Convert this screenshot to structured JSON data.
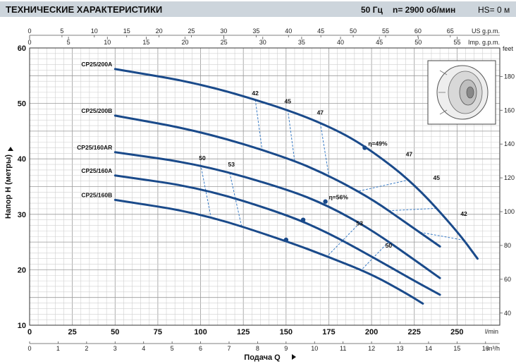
{
  "header": {
    "title": "ТЕХНИЧЕСКИЕ ХАРАКТЕРИСТИКИ",
    "frequency": "50 Гц",
    "speed": "n= 2900  об/мин",
    "hs": "HS= 0 м"
  },
  "chart_data": {
    "type": "line",
    "xlabel": "Подача Q",
    "ylabel": "Напор H (метры)",
    "xlim": [
      0,
      275
    ],
    "ylim": [
      10,
      60
    ],
    "grid": true,
    "x_unit": "l/min",
    "y_ticks": [
      10,
      20,
      30,
      40,
      50,
      60
    ],
    "x_ticks_lmin": [
      0,
      25,
      50,
      75,
      100,
      125,
      150,
      175,
      200,
      225,
      250
    ],
    "secondary_axes": {
      "us_gpm": {
        "unit": "US g.p.m.",
        "ticks": [
          0,
          5,
          10,
          15,
          20,
          25,
          30,
          35,
          40,
          45,
          50,
          55,
          60,
          65
        ]
      },
      "imp_gpm": {
        "unit": "Imp. g.p.m.",
        "ticks": [
          0,
          5,
          10,
          15,
          20,
          25,
          30,
          35,
          40,
          45,
          50,
          55
        ]
      },
      "m3h": {
        "unit": "m³/h",
        "ticks": [
          0,
          1,
          2,
          3,
          4,
          5,
          6,
          7,
          8,
          9,
          10,
          11,
          12,
          13,
          14,
          15,
          16
        ]
      },
      "feet": {
        "unit": "feet",
        "ticks": [
          40,
          60,
          80,
          100,
          120,
          140,
          160,
          180
        ]
      }
    },
    "series": [
      {
        "name": "CP25/200A",
        "points": [
          [
            50,
            56.2
          ],
          [
            100,
            53.6
          ],
          [
            150,
            49.0
          ],
          [
            180,
            45.2
          ],
          [
            200,
            41.5
          ],
          [
            225,
            35.5
          ],
          [
            250,
            27.0
          ],
          [
            262,
            22.0
          ]
        ]
      },
      {
        "name": "CP25/200B",
        "points": [
          [
            50,
            47.8
          ],
          [
            100,
            45.0
          ],
          [
            150,
            40.3
          ],
          [
            175,
            37.0
          ],
          [
            200,
            32.8
          ],
          [
            220,
            28.5
          ],
          [
            240,
            24.2
          ]
        ]
      },
      {
        "name": "CP25/160AR",
        "points": [
          [
            50,
            41.2
          ],
          [
            100,
            39.0
          ],
          [
            150,
            34.6
          ],
          [
            175,
            31.5
          ],
          [
            200,
            27.2
          ],
          [
            225,
            21.8
          ],
          [
            240,
            18.5
          ]
        ]
      },
      {
        "name": "CP25/160A",
        "points": [
          [
            50,
            37.0
          ],
          [
            100,
            34.8
          ],
          [
            150,
            30.0
          ],
          [
            175,
            26.6
          ],
          [
            200,
            22.4
          ],
          [
            225,
            18.0
          ],
          [
            240,
            15.5
          ]
        ]
      },
      {
        "name": "CP25/160B",
        "points": [
          [
            50,
            32.6
          ],
          [
            100,
            30.2
          ],
          [
            150,
            25.2
          ],
          [
            175,
            22.3
          ],
          [
            200,
            19.2
          ],
          [
            220,
            15.8
          ],
          [
            230,
            13.9
          ]
        ]
      }
    ],
    "efficiency_points": [
      {
        "label": "η=49%",
        "series": "CP25/200A",
        "x": 196,
        "y": 42.0
      },
      {
        "label": "η=56%",
        "series": "CP25/160AR",
        "x": 173,
        "y": 32.3
      },
      {
        "label": "",
        "series": "CP25/160A",
        "x": 160,
        "y": 29.0
      },
      {
        "label": "",
        "series": "CP25/160B",
        "x": 150,
        "y": 25.4
      }
    ],
    "efficiency_labels": [
      {
        "label": "42",
        "x": 132,
        "y": 51.5
      },
      {
        "label": "45",
        "x": 151,
        "y": 50.0
      },
      {
        "label": "47",
        "x": 170,
        "y": 48.0
      },
      {
        "label": "47",
        "x": 222,
        "y": 40.5
      },
      {
        "label": "45",
        "x": 238,
        "y": 36.2
      },
      {
        "label": "42",
        "x": 254,
        "y": 29.7
      },
      {
        "label": "50",
        "x": 101,
        "y": 39.8
      },
      {
        "label": "53",
        "x": 118,
        "y": 38.6
      },
      {
        "label": "53",
        "x": 193,
        "y": 28.0
      },
      {
        "label": "50",
        "x": 210,
        "y": 24.0
      }
    ]
  }
}
